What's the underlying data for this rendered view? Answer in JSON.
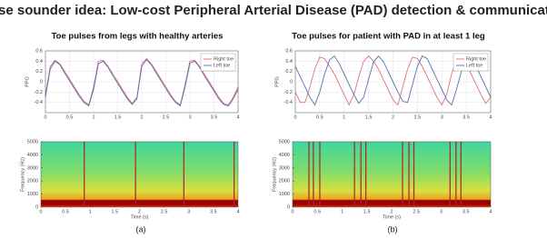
{
  "title": "Pulse sounder idea: Low-cost Peripheral Arterial Disease (PAD) detection & communication",
  "captions": [
    "(a)",
    "(b)"
  ],
  "chart_data": [
    {
      "type": "line",
      "title": "Toe pulses from legs with healthy arteries",
      "ylabel": "PPG",
      "x": [
        0,
        0.1,
        0.2,
        0.3,
        0.4,
        0.5,
        0.6,
        0.7,
        0.8,
        0.9,
        1,
        1.1,
        1.2,
        1.3,
        1.4,
        1.5,
        1.6,
        1.7,
        1.8,
        1.9,
        2,
        2.1,
        2.2,
        2.3,
        2.4,
        2.5,
        2.6,
        2.7,
        2.8,
        2.9,
        3,
        3.1,
        3.2,
        3.3,
        3.4,
        3.5,
        3.6,
        3.7,
        3.8,
        3.9,
        4
      ],
      "series": [
        {
          "name": "Right toe",
          "color": "#e07080",
          "values": [
            -0.25,
            0.3,
            0.42,
            0.35,
            0.2,
            0.05,
            -0.1,
            -0.25,
            -0.38,
            -0.45,
            -0.1,
            0.4,
            0.42,
            0.3,
            0.15,
            0,
            -0.15,
            -0.3,
            -0.42,
            -0.3,
            0.35,
            0.45,
            0.35,
            0.2,
            0.05,
            -0.1,
            -0.25,
            -0.38,
            -0.45,
            -0.05,
            0.4,
            0.42,
            0.3,
            0.15,
            0,
            -0.15,
            -0.3,
            -0.42,
            -0.45,
            -0.3,
            -0.1
          ]
        },
        {
          "name": "Left toe",
          "color": "#5a6fb0",
          "values": [
            -0.3,
            0.25,
            0.4,
            0.33,
            0.17,
            0.02,
            -0.13,
            -0.28,
            -0.4,
            -0.47,
            -0.15,
            0.35,
            0.4,
            0.28,
            0.12,
            -0.03,
            -0.18,
            -0.33,
            -0.44,
            -0.33,
            0.3,
            0.43,
            0.33,
            0.17,
            0.02,
            -0.13,
            -0.28,
            -0.4,
            -0.47,
            -0.1,
            0.36,
            0.4,
            0.28,
            0.12,
            -0.03,
            -0.18,
            -0.33,
            -0.44,
            -0.47,
            -0.33,
            -0.15
          ]
        }
      ],
      "xlim": [
        0,
        4
      ],
      "ylim": [
        -0.6,
        0.6
      ],
      "xticks": [
        0,
        0.5,
        1,
        1.5,
        2,
        2.5,
        3,
        3.5,
        4
      ],
      "yticks": [
        -0.4,
        -0.2,
        0,
        0.2,
        0.4,
        0.6
      ],
      "grid": true,
      "legend": "upper right"
    },
    {
      "type": "spectrogram",
      "xlabel": "Time (s)",
      "ylabel": "Frequency (Hz)",
      "events": [
        0.88,
        1.92,
        2.9,
        3.92
      ],
      "event_color": "#b0202a",
      "xlim": [
        0,
        4
      ],
      "ylim": [
        0,
        5000
      ],
      "xticks": [
        0,
        0.5,
        1,
        1.5,
        2,
        2.5,
        3,
        3.5,
        4
      ],
      "yticks": [
        0,
        1000,
        2000,
        3000,
        4000,
        5000
      ]
    },
    {
      "type": "line",
      "title": "Toe pulses for patient with PAD in at least 1 leg",
      "ylabel": "PPG",
      "x": [
        0,
        0.1,
        0.2,
        0.3,
        0.4,
        0.5,
        0.6,
        0.7,
        0.8,
        0.9,
        1,
        1.1,
        1.2,
        1.3,
        1.4,
        1.5,
        1.6,
        1.7,
        1.8,
        1.9,
        2,
        2.1,
        2.2,
        2.3,
        2.4,
        2.5,
        2.6,
        2.7,
        2.8,
        2.9,
        3,
        3.1,
        3.2,
        3.3,
        3.4,
        3.5,
        3.6,
        3.7,
        3.8,
        3.9,
        4
      ],
      "series": [
        {
          "name": "Right toe",
          "color": "#e07080",
          "values": [
            -0.2,
            -0.4,
            -0.4,
            -0.1,
            0.25,
            0.48,
            0.45,
            0.3,
            0.15,
            -0.05,
            -0.25,
            -0.45,
            -0.25,
            0.1,
            0.4,
            0.5,
            0.4,
            0.25,
            0.05,
            -0.15,
            -0.35,
            -0.45,
            -0.1,
            0.25,
            0.48,
            0.45,
            0.3,
            0.1,
            -0.1,
            -0.3,
            -0.45,
            -0.25,
            0.15,
            0.42,
            0.5,
            0.35,
            0.15,
            -0.05,
            -0.25,
            -0.42,
            -0.3
          ]
        },
        {
          "name": "Left toe",
          "color": "#5a6fb0",
          "values": [
            0.3,
            0.1,
            -0.1,
            -0.3,
            -0.45,
            -0.2,
            0.15,
            0.42,
            0.5,
            0.35,
            0.15,
            -0.05,
            -0.25,
            -0.42,
            -0.3,
            0.05,
            0.38,
            0.5,
            0.4,
            0.2,
            0,
            -0.2,
            -0.38,
            -0.4,
            -0.05,
            0.3,
            0.5,
            0.45,
            0.25,
            0.05,
            -0.15,
            -0.35,
            -0.45,
            -0.15,
            0.2,
            0.48,
            0.45,
            0.3,
            0.1,
            -0.1,
            -0.3
          ]
        }
      ],
      "xlim": [
        0,
        4
      ],
      "ylim": [
        -0.6,
        0.6
      ],
      "xticks": [
        0,
        0.5,
        1,
        1.5,
        2,
        2.5,
        3,
        3.5,
        4
      ],
      "yticks": [
        -0.4,
        -0.2,
        0,
        0.2,
        0.4,
        0.6
      ],
      "grid": true,
      "legend": "upper right"
    },
    {
      "type": "spectrogram",
      "xlabel": "Time (s)",
      "ylabel": "Frequency (Hz)",
      "events": [
        0.33,
        0.42,
        0.55,
        1.25,
        1.38,
        1.48,
        2.22,
        2.35,
        2.45,
        3.18,
        3.3,
        3.4
      ],
      "event_color": "#b0202a",
      "xlim": [
        0,
        4
      ],
      "ylim": [
        0,
        5000
      ],
      "xticks": [
        0,
        0.5,
        1,
        1.5,
        2,
        2.5,
        3,
        3.5,
        4
      ],
      "yticks": [
        0,
        1000,
        2000,
        3000,
        4000,
        5000
      ]
    }
  ]
}
